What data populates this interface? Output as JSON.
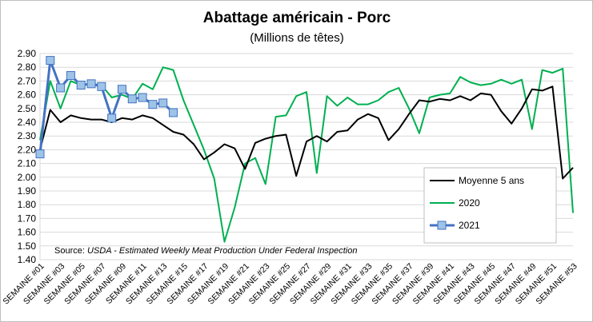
{
  "chart_data": {
    "type": "line",
    "title": "Abattage américain - Porc",
    "subtitle": "(Millions de têtes)",
    "ylim": [
      1.4,
      2.9
    ],
    "ytick_step": 0.1,
    "x_labels": [
      "SEMAINE #01",
      "SEMAINE #03",
      "SEMAINE #05",
      "SEMAINE #07",
      "SEMAINE #09",
      "SEMAINE #11",
      "SEMAINE #13",
      "SEMAINE #15",
      "SEMAINE #17",
      "SEMAINE #19",
      "SEMAINE #21",
      "SEMAINE #23",
      "SEMAINE #25",
      "SEMAINE #27",
      "SEMAINE #29",
      "SEMAINE #31",
      "SEMAINE #33",
      "SEMAINE #35",
      "SEMAINE #37",
      "SEMAINE #39",
      "SEMAINE #41",
      "SEMAINE #43",
      "SEMAINE #45",
      "SEMAINE #47",
      "SEMAINE #49",
      "SEMAINE #51",
      "SEMAINE #53"
    ],
    "weeks": [
      1,
      2,
      3,
      4,
      5,
      6,
      7,
      8,
      9,
      10,
      11,
      12,
      13,
      14,
      15,
      16,
      17,
      18,
      19,
      20,
      21,
      22,
      23,
      24,
      25,
      26,
      27,
      28,
      29,
      30,
      31,
      32,
      33,
      34,
      35,
      36,
      37,
      38,
      39,
      40,
      41,
      42,
      43,
      44,
      45,
      46,
      47,
      48,
      49,
      50,
      51,
      52,
      53
    ],
    "grid": true,
    "legend_position": "bottom-right",
    "series": [
      {
        "name": "Moyenne 5 ans",
        "color": "#000000",
        "marker": false,
        "values": [
          2.2,
          2.49,
          2.4,
          2.45,
          2.43,
          2.42,
          2.42,
          2.4,
          2.43,
          2.42,
          2.45,
          2.43,
          2.38,
          2.33,
          2.31,
          2.24,
          2.13,
          2.18,
          2.24,
          2.21,
          2.06,
          2.25,
          2.28,
          2.3,
          2.31,
          2.01,
          2.26,
          2.3,
          2.26,
          2.33,
          2.34,
          2.42,
          2.46,
          2.43,
          2.27,
          2.35,
          2.46,
          2.56,
          2.55,
          2.57,
          2.56,
          2.59,
          2.56,
          2.61,
          2.6,
          2.48,
          2.39,
          2.5,
          2.64,
          2.63,
          2.66,
          1.99,
          2.07
        ]
      },
      {
        "name": "2020",
        "color": "#00b050",
        "marker": false,
        "values": [
          2.27,
          2.7,
          2.5,
          2.7,
          2.67,
          2.68,
          2.67,
          2.58,
          2.6,
          2.57,
          2.68,
          2.64,
          2.8,
          2.78,
          2.56,
          2.38,
          2.2,
          1.99,
          1.53,
          1.78,
          2.1,
          2.14,
          1.95,
          2.44,
          2.45,
          2.59,
          2.62,
          2.03,
          2.59,
          2.52,
          2.58,
          2.53,
          2.53,
          2.56,
          2.62,
          2.65,
          2.5,
          2.32,
          2.58,
          2.6,
          2.61,
          2.73,
          2.69,
          2.67,
          2.68,
          2.71,
          2.68,
          2.71,
          2.35,
          2.78,
          2.76,
          2.79,
          1.74
        ]
      },
      {
        "name": "2021",
        "color": "#4472c4",
        "marker": true,
        "marker_fill": "#9dc3e6",
        "values": [
          2.17,
          2.85,
          2.65,
          2.74,
          2.67,
          2.68,
          2.66,
          2.43,
          2.64,
          2.57,
          2.58,
          2.53,
          2.54,
          2.47
        ]
      }
    ],
    "source_prefix": "Source: ",
    "source_text": "USDA - Estimated Weekly Meat Production Under Federal Inspection"
  }
}
